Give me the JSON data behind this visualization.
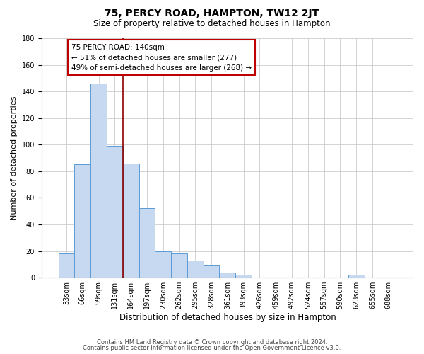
{
  "title": "75, PERCY ROAD, HAMPTON, TW12 2JT",
  "subtitle": "Size of property relative to detached houses in Hampton",
  "xlabel": "Distribution of detached houses by size in Hampton",
  "ylabel": "Number of detached properties",
  "bar_labels": [
    "33sqm",
    "66sqm",
    "99sqm",
    "131sqm",
    "164sqm",
    "197sqm",
    "230sqm",
    "262sqm",
    "295sqm",
    "328sqm",
    "361sqm",
    "393sqm",
    "426sqm",
    "459sqm",
    "492sqm",
    "524sqm",
    "557sqm",
    "590sqm",
    "623sqm",
    "655sqm",
    "688sqm"
  ],
  "bar_values": [
    18,
    85,
    146,
    99,
    86,
    52,
    20,
    18,
    13,
    9,
    4,
    2,
    0,
    0,
    0,
    0,
    0,
    0,
    2,
    0,
    0
  ],
  "bar_color": "#c6d9f0",
  "bar_edge_color": "#5b9bd5",
  "property_line_label": "75 PERCY ROAD: 140sqm",
  "annotation_line1": "← 51% of detached houses are smaller (277)",
  "annotation_line2": "49% of semi-detached houses are larger (268) →",
  "annotation_box_color": "#ffffff",
  "annotation_box_edge": "#c00000",
  "vline_color": "#8b0000",
  "vline_x": 3.5,
  "ylim": [
    0,
    180
  ],
  "yticks": [
    0,
    20,
    40,
    60,
    80,
    100,
    120,
    140,
    160,
    180
  ],
  "footer1": "Contains HM Land Registry data © Crown copyright and database right 2024.",
  "footer2": "Contains public sector information licensed under the Open Government Licence v3.0.",
  "background_color": "#ffffff",
  "grid_color": "#cccccc",
  "title_fontsize": 10,
  "subtitle_fontsize": 8.5,
  "ylabel_fontsize": 8,
  "xlabel_fontsize": 8.5,
  "tick_fontsize": 7,
  "annot_fontsize": 7.5,
  "footer_fontsize": 6
}
